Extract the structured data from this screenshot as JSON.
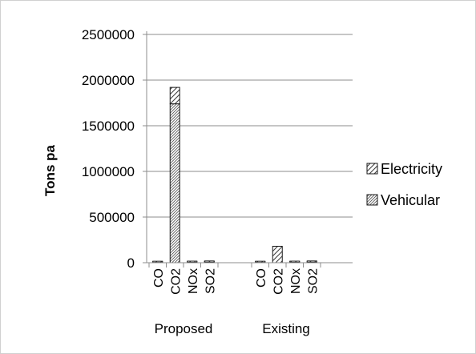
{
  "chart_data": {
    "type": "bar",
    "stacked": true,
    "ylabel": "Tons pa",
    "ylim": [
      0,
      2500000
    ],
    "yticks": [
      0,
      500000,
      1000000,
      1500000,
      2000000,
      2500000
    ],
    "grid": true,
    "legend_position": "right",
    "groups": [
      {
        "label": "Proposed",
        "categories": [
          "CO",
          "CO2",
          "NOx",
          "SO2"
        ]
      },
      {
        "label": "Existing",
        "categories": [
          "CO",
          "CO2",
          "NOx",
          "SO2"
        ]
      }
    ],
    "series": [
      {
        "name": "Vehicular",
        "pattern": "hatch-dense",
        "values": [
          [
            3000,
            1740000,
            4000,
            6000
          ],
          [
            3000,
            0,
            4000,
            6000
          ]
        ]
      },
      {
        "name": "Electricity",
        "pattern": "hatch-sparse",
        "values": [
          [
            1000,
            180000,
            3000,
            9000
          ],
          [
            1000,
            180000,
            3000,
            9000
          ]
        ]
      }
    ],
    "legend_order": [
      "Electricity",
      "Vehicular"
    ]
  }
}
